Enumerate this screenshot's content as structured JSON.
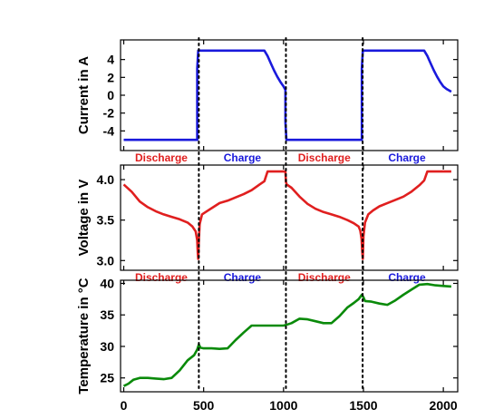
{
  "chart_data": [
    {
      "type": "line",
      "ylabel": "Current in A",
      "ylim": [
        -6.2,
        6.2
      ],
      "yticks": [
        -4,
        -2,
        0,
        2,
        4
      ],
      "color": "#1a1adc",
      "series": [
        {
          "x": [
            0,
            460,
            460,
            466,
            470,
            880,
            900,
            920,
            940,
            960,
            980,
            1000,
            1012,
            1012,
            1018,
            1490,
            1490,
            1496,
            1500,
            1880,
            1900,
            1920,
            1940,
            1960,
            1980,
            2000,
            2020,
            2040,
            2050
          ],
          "y": [
            -5,
            -5,
            3,
            5,
            5,
            5,
            4.4,
            3.6,
            2.8,
            2.1,
            1.5,
            1.0,
            0.6,
            -3,
            -5,
            -5,
            3,
            5,
            5,
            5,
            4.4,
            3.6,
            2.8,
            2.1,
            1.5,
            1.0,
            0.7,
            0.5,
            0.4
          ]
        }
      ],
      "phases": [
        {
          "label": "Discharge",
          "color": "#e01f1f",
          "from": 0,
          "to": 470
        },
        {
          "label": "Charge",
          "color": "#1a1adc",
          "from": 470,
          "to": 1015
        },
        {
          "label": "Discharge",
          "color": "#e01f1f",
          "from": 1015,
          "to": 1495
        },
        {
          "label": "Charge",
          "color": "#1a1adc",
          "from": 1495,
          "to": 2050
        }
      ]
    },
    {
      "type": "line",
      "ylabel": "Voltage in V",
      "ylim": [
        2.88,
        4.18
      ],
      "yticks": [
        3.0,
        3.5,
        4.0
      ],
      "tick_labels": [
        "3.0",
        "3.5",
        "4.0"
      ],
      "color": "#e01f1f",
      "series": [
        {
          "x": [
            0,
            50,
            100,
            150,
            200,
            250,
            300,
            350,
            400,
            430,
            450,
            460,
            463,
            466,
            470,
            475,
            490,
            520,
            560,
            600,
            650,
            700,
            750,
            800,
            850,
            880,
            900,
            950,
            1000,
            1012,
            1015,
            1020,
            1050,
            1100,
            1150,
            1200,
            1250,
            1300,
            1350,
            1400,
            1440,
            1470,
            1480,
            1488,
            1492,
            1496,
            1500,
            1510,
            1530,
            1560,
            1600,
            1650,
            1700,
            1750,
            1800,
            1850,
            1880,
            1900,
            1950,
            2000,
            2050
          ],
          "y": [
            3.94,
            3.85,
            3.73,
            3.66,
            3.61,
            3.57,
            3.54,
            3.51,
            3.47,
            3.42,
            3.36,
            3.25,
            3.1,
            3.02,
            3.25,
            3.45,
            3.57,
            3.61,
            3.66,
            3.71,
            3.74,
            3.78,
            3.82,
            3.87,
            3.94,
            3.98,
            4.1,
            4.1,
            4.1,
            4.1,
            3.97,
            3.94,
            3.9,
            3.79,
            3.7,
            3.64,
            3.6,
            3.57,
            3.54,
            3.5,
            3.46,
            3.42,
            3.37,
            3.27,
            3.12,
            3.02,
            3.3,
            3.47,
            3.57,
            3.62,
            3.67,
            3.71,
            3.75,
            3.79,
            3.85,
            3.93,
            3.99,
            4.1,
            4.1,
            4.1,
            4.1
          ]
        }
      ],
      "phases": [
        {
          "label": "Discharge",
          "color": "#e01f1f",
          "from": 0,
          "to": 470
        },
        {
          "label": "Charge",
          "color": "#1a1adc",
          "from": 470,
          "to": 1015
        },
        {
          "label": "Discharge",
          "color": "#e01f1f",
          "from": 1015,
          "to": 1495
        },
        {
          "label": "Charge",
          "color": "#1a1adc",
          "from": 1495,
          "to": 2050
        }
      ]
    },
    {
      "type": "line",
      "ylabel": "Temperature in °C",
      "xlabel": "",
      "ylim": [
        22.8,
        40.5
      ],
      "yticks": [
        25,
        30,
        35,
        40
      ],
      "xlim": [
        -20,
        2090
      ],
      "xticks": [
        0,
        500,
        1000,
        1500,
        2000
      ],
      "color": "#0a8a0a",
      "series": [
        {
          "x": [
            0,
            30,
            60,
            100,
            150,
            200,
            250,
            300,
            350,
            400,
            440,
            460,
            470,
            480,
            500,
            550,
            600,
            650,
            700,
            750,
            800,
            850,
            900,
            950,
            1000,
            1015,
            1050,
            1100,
            1150,
            1200,
            1250,
            1300,
            1350,
            1400,
            1440,
            1470,
            1490,
            1500,
            1510,
            1550,
            1600,
            1650,
            1700,
            1750,
            1800,
            1850,
            1900,
            1950,
            2000,
            2050
          ],
          "y": [
            23.7,
            24.1,
            24.7,
            25.0,
            25.0,
            24.9,
            24.8,
            25.0,
            26.2,
            27.8,
            28.6,
            29.5,
            30.3,
            29.8,
            29.7,
            29.7,
            29.6,
            29.7,
            31.0,
            32.2,
            33.3,
            33.3,
            33.3,
            33.3,
            33.3,
            33.4,
            33.7,
            34.4,
            34.3,
            34.0,
            33.7,
            33.7,
            34.8,
            36.2,
            36.9,
            37.5,
            38.2,
            37.8,
            37.2,
            37.1,
            36.8,
            36.6,
            37.3,
            38.2,
            39.0,
            39.8,
            39.9,
            39.7,
            39.6,
            39.5
          ]
        }
      ],
      "phases": []
    }
  ]
}
